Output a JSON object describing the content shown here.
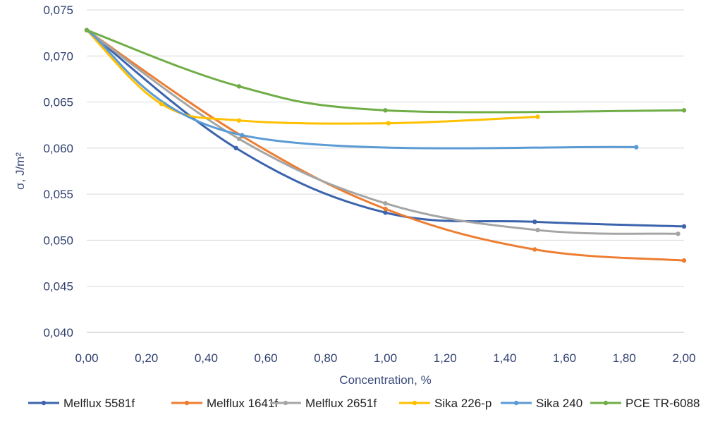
{
  "chart_data": {
    "type": "line",
    "title": "",
    "xlabel": "Concentration, %",
    "ylabel": "σ, J/m²",
    "xlim": [
      0,
      2.0
    ],
    "ylim": [
      0.04,
      0.075
    ],
    "x_ticks": [
      "0,00",
      "0,20",
      "0,40",
      "0,60",
      "0,80",
      "1,00",
      "1,20",
      "1,40",
      "1,60",
      "1,80",
      "2,00"
    ],
    "x_tick_values": [
      0,
      0.2,
      0.4,
      0.6,
      0.8,
      1.0,
      1.2,
      1.4,
      1.6,
      1.8,
      2.0
    ],
    "y_ticks": [
      "0,040",
      "0,045",
      "0,050",
      "0,055",
      "0,060",
      "0,065",
      "0,070",
      "0,075"
    ],
    "y_tick_values": [
      0.04,
      0.045,
      0.05,
      0.055,
      0.06,
      0.065,
      0.07,
      0.075
    ],
    "grid": "horizontal",
    "legend_position": "bottom",
    "series": [
      {
        "name": "Melflux 5581f",
        "color": "#3c64ad",
        "x": [
          0,
          0.5,
          1.0,
          1.5,
          2.0
        ],
        "y": [
          0.0728,
          0.06,
          0.053,
          0.052,
          0.0515
        ]
      },
      {
        "name": "Melflux 1641f",
        "color": "#ed7d31",
        "x": [
          0,
          0.52,
          1.0,
          1.5,
          2.0
        ],
        "y": [
          0.0728,
          0.0613,
          0.0534,
          0.049,
          0.0478
        ]
      },
      {
        "name": "Melflux 2651f",
        "color": "#a5a5a5",
        "x": [
          0,
          0.51,
          1.0,
          1.51,
          1.98
        ],
        "y": [
          0.0728,
          0.061,
          0.054,
          0.0511,
          0.0507
        ]
      },
      {
        "name": "Sika 226-p",
        "color": "#ffc000",
        "x": [
          0,
          0.25,
          0.51,
          1.01,
          1.51
        ],
        "y": [
          0.0728,
          0.0648,
          0.063,
          0.0627,
          0.0634
        ]
      },
      {
        "name": "Sika 240",
        "color": "#5b9bd5",
        "x": [
          0,
          0.52,
          1.84
        ],
        "y": [
          0.0728,
          0.0614,
          0.0601
        ]
      },
      {
        "name": "PCE TR-6088",
        "color": "#70ad47",
        "x": [
          0,
          0.51,
          1.0,
          2.0
        ],
        "y": [
          0.0728,
          0.0667,
          0.0641,
          0.0641
        ]
      }
    ]
  }
}
